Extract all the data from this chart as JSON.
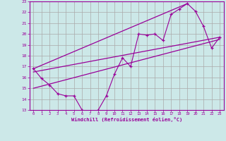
{
  "xlabel": "Windchill (Refroidissement éolien,°C)",
  "bg_color": "#cce8e8",
  "line_color": "#990099",
  "grid_color": "#aaaaaa",
  "xlim": [
    -0.5,
    23.5
  ],
  "ylim": [
    13,
    23
  ],
  "yticks": [
    13,
    14,
    15,
    16,
    17,
    18,
    19,
    20,
    21,
    22,
    23
  ],
  "xticks": [
    0,
    1,
    2,
    3,
    4,
    5,
    6,
    7,
    8,
    9,
    10,
    11,
    12,
    13,
    14,
    15,
    16,
    17,
    18,
    19,
    20,
    21,
    22,
    23
  ],
  "scatter_x": [
    0,
    1,
    2,
    3,
    4,
    5,
    6,
    7,
    8,
    9,
    10,
    11,
    12,
    13,
    14,
    15,
    16,
    17,
    18,
    19,
    20,
    21,
    22,
    23
  ],
  "scatter_y": [
    16.8,
    15.9,
    15.3,
    14.5,
    14.3,
    14.3,
    13.0,
    12.7,
    13.0,
    14.3,
    16.3,
    17.8,
    17.0,
    20.0,
    19.9,
    20.0,
    19.4,
    21.8,
    22.3,
    22.8,
    22.1,
    20.7,
    18.7,
    19.7
  ],
  "line1_x": [
    0,
    19
  ],
  "line1_y": [
    16.8,
    22.8
  ],
  "line2_x": [
    0,
    23
  ],
  "line2_y": [
    15.0,
    19.5
  ],
  "line3_x": [
    0,
    23
  ],
  "line3_y": [
    16.5,
    19.7
  ]
}
